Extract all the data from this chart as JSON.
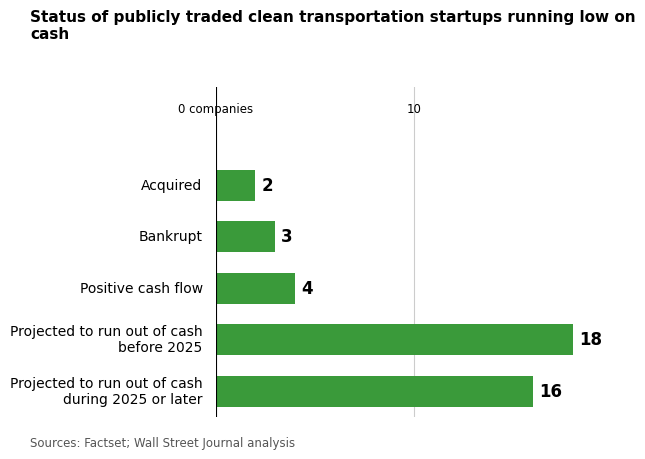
{
  "title": "Status of publicly traded clean transportation startups running low on cash",
  "categories": [
    "Projected to run out of cash\nduring 2025 or later",
    "Projected to run out of cash\nbefore 2025",
    "Positive cash flow",
    "Bankrupt",
    "Acquired"
  ],
  "values": [
    16,
    18,
    4,
    3,
    2
  ],
  "bar_color": "#3a9a3a",
  "xlim": [
    0,
    20
  ],
  "value_labels": [
    "16",
    "18",
    "4",
    "3",
    "2"
  ],
  "footnote": "Sources: Factset; Wall Street Journal analysis",
  "title_fontsize": 11,
  "label_fontsize": 10,
  "value_fontsize": 12,
  "footnote_fontsize": 8.5,
  "background_color": "#ffffff"
}
